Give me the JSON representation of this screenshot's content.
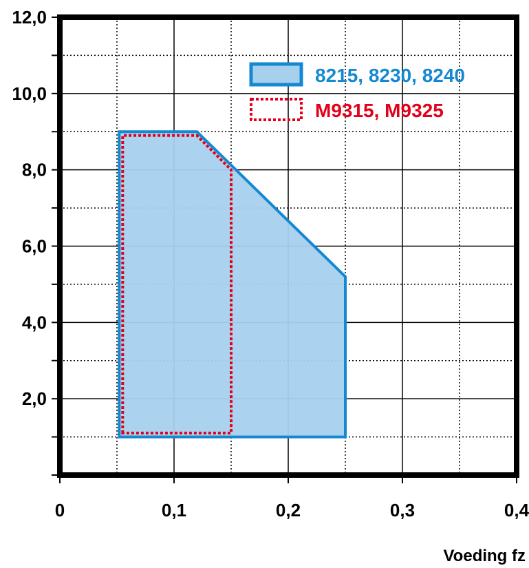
{
  "chart_data": {
    "type": "area",
    "title": "",
    "xlabel": "Voeding fz",
    "ylabel": "",
    "xlim": [
      0,
      0.4
    ],
    "ylim": [
      0,
      12.0
    ],
    "grid": true,
    "legend_position": "top-right",
    "x_ticks": [
      {
        "value": 0,
        "label": "0"
      },
      {
        "value": 0.1,
        "label": "0,1"
      },
      {
        "value": 0.2,
        "label": "0,2"
      },
      {
        "value": 0.3,
        "label": "0,3"
      },
      {
        "value": 0.4,
        "label": "0,4"
      }
    ],
    "y_ticks": [
      {
        "value": 2.0,
        "label": "2,0"
      },
      {
        "value": 4.0,
        "label": "4,0"
      },
      {
        "value": 6.0,
        "label": "6,0"
      },
      {
        "value": 8.0,
        "label": "8,0"
      },
      {
        "value": 10.0,
        "label": "10,0"
      },
      {
        "value": 12.0,
        "label": "12,0"
      }
    ],
    "x_minor_gridlines": [
      0.05,
      0.15,
      0.25,
      0.35
    ],
    "y_minor_gridlines": [
      1.0,
      3.0,
      5.0,
      7.0,
      9.0,
      11.0
    ],
    "series": [
      {
        "name": "8215, 8230, 8240",
        "style": "filled",
        "stroke_color": "#1588d2",
        "fill_color": "#a7d0ed",
        "points": [
          [
            0.052,
            1.0
          ],
          [
            0.052,
            9.0
          ],
          [
            0.12,
            9.0
          ],
          [
            0.25,
            5.2
          ],
          [
            0.25,
            1.0
          ]
        ]
      },
      {
        "name": "M9315, M9325",
        "style": "dotted",
        "stroke_color": "#e3001b",
        "fill_color": "none",
        "points": [
          [
            0.055,
            1.1
          ],
          [
            0.055,
            8.9
          ],
          [
            0.12,
            8.9
          ],
          [
            0.15,
            8.0
          ],
          [
            0.15,
            1.1
          ]
        ]
      }
    ]
  }
}
